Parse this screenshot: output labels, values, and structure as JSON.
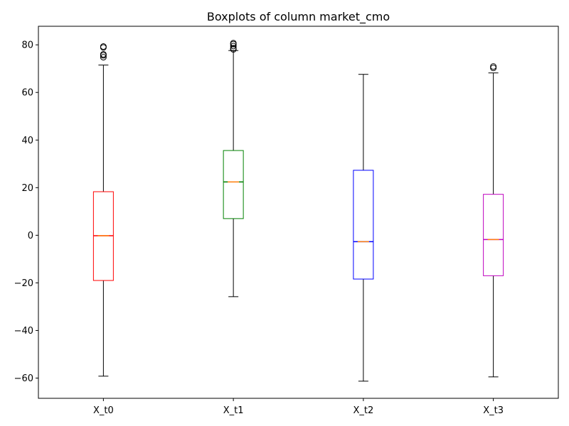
{
  "chart_data": {
    "type": "boxplot",
    "title": "Boxplots of column market_cmo",
    "xlabel": "",
    "ylabel": "",
    "ylim": [
      -68.5,
      87.8
    ],
    "yticks": [
      -60,
      -40,
      -20,
      0,
      20,
      40,
      60,
      80
    ],
    "grid": false,
    "categories": [
      "X_t0",
      "X_t1",
      "X_t2",
      "X_t3"
    ],
    "series": [
      {
        "label": "X_t0",
        "color": "#ff0000",
        "whisker_low": -59.2,
        "q1": -19.0,
        "median": -0.2,
        "q3": 18.3,
        "whisker_high": 71.5,
        "outliers": [
          74.8,
          75.6,
          76.0,
          78.9,
          79.3
        ]
      },
      {
        "label": "X_t1",
        "color": "#008000",
        "whisker_low": -25.8,
        "q1": 7.0,
        "median": 22.4,
        "q3": 35.6,
        "whisker_high": 77.6,
        "outliers": [
          78.1,
          78.6,
          79.5,
          80.3,
          80.7
        ]
      },
      {
        "label": "X_t2",
        "color": "#0000ff",
        "whisker_low": -61.3,
        "q1": -18.4,
        "median": -2.7,
        "q3": 27.3,
        "whisker_high": 67.6,
        "outliers": []
      },
      {
        "label": "X_t3",
        "color": "#bf00bf",
        "whisker_low": -59.5,
        "q1": -17.0,
        "median": -1.8,
        "q3": 17.2,
        "whisker_high": 68.2,
        "outliers": [
          70.3,
          70.9
        ]
      }
    ],
    "median_color": "#ff7f0e"
  }
}
